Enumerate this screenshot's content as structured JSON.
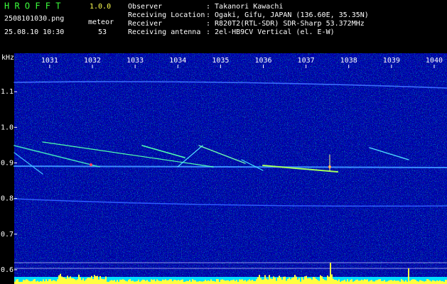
{
  "header": {
    "program": "H R O F F T",
    "version": "1.0.0",
    "file": "2508101030.png",
    "mode": "meteor",
    "timestamp": "25.08.10 10:30",
    "count": "53",
    "info": [
      {
        "label": "Observer",
        "value": ": Takanori Kawachi"
      },
      {
        "label": "Receiving Location",
        "value": ": Ogaki, Gifu, JAPAN (136.60E, 35.35N)"
      },
      {
        "label": "Receiver",
        "value": ": R820T2(RTL-SDR) SDR-Sharp 53.372MHz"
      },
      {
        "label": "Receiving antenna",
        "value": ": 2el-HB9CV Vertical (el. E-W)"
      }
    ]
  },
  "chart_data": {
    "type": "spectrogram",
    "y_label": "kHz",
    "xlim": [
      1030.17,
      1040.3
    ],
    "xticks": [
      1031,
      1032,
      1033,
      1034,
      1035,
      1036,
      1037,
      1038,
      1039,
      1040
    ],
    "ylim": [
      0.56,
      1.208
    ],
    "yticks": [
      1.1,
      {
        "value": 1,
        "label": "1.0"
      },
      0.9,
      0.8,
      0.7,
      0.6
    ]
  }
}
